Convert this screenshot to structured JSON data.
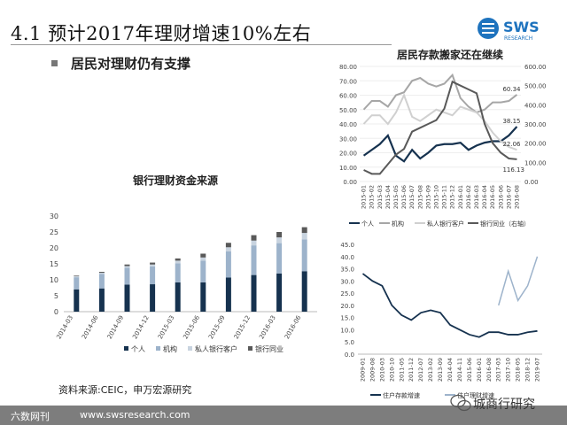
{
  "slide": {
    "title": "4.1 预计2017年理财增速10%左右",
    "bullet": "居民对理财仍有支撑",
    "source": "资料来源:CEIC，申万宏源研究",
    "footer_text": "六数网刊",
    "footer_url": "www.swsresearch.com",
    "watermark": "城商行研究",
    "logo_text": "SWS",
    "logo_sub": "RESEARCH"
  },
  "colors": {
    "navy": "#16324f",
    "lightblue": "#9db3cb",
    "paleblue": "#c8d3df",
    "darkgray": "#595959",
    "gray": "#a6a6a6",
    "lightgray": "#d0d0d0",
    "logo_blue": "#1e73be"
  },
  "chart_data": [
    {
      "type": "bar",
      "stacked": true,
      "title": "银行理财资金来源",
      "categories": [
        "2014-03",
        "2014-06",
        "2014-09",
        "2014-12",
        "2015-03",
        "2015-06",
        "2015-09",
        "2015-12",
        "2016-03",
        "2016-06"
      ],
      "ylim": [
        0,
        30
      ],
      "yticks": [
        "0",
        "5",
        "10",
        "15",
        "20",
        "25",
        "30"
      ],
      "series": [
        {
          "name": "个人",
          "values": [
            7,
            7.3,
            8.5,
            8.6,
            9.2,
            9.2,
            10.7,
            11.5,
            12,
            12.7
          ]
        },
        {
          "name": "机构",
          "values": [
            3.8,
            4.5,
            5.3,
            5.6,
            6,
            6.8,
            8.2,
            9.3,
            9.5,
            10
          ]
        },
        {
          "name": "私人银行客户",
          "values": [
            0.3,
            0.4,
            0.5,
            0.6,
            0.8,
            1,
            1.3,
            1.5,
            1.8,
            2
          ]
        },
        {
          "name": "银行同业",
          "values": [
            0.2,
            0.3,
            0.5,
            0.6,
            0.7,
            1.2,
            1.4,
            1.7,
            1.7,
            1.8
          ]
        }
      ],
      "legend_position": "bottom"
    },
    {
      "type": "line",
      "title": "居民存款搬家还在继续",
      "x": [
        "2015-01",
        "2015-02",
        "2015-03",
        "2015-04",
        "2015-05",
        "2015-06",
        "2015-07",
        "2015-08",
        "2015-09",
        "2015-10",
        "2015-11",
        "2015-12",
        "2016-01",
        "2016-02",
        "2016-03",
        "2016-04",
        "2016-05",
        "2016-06",
        "2016-07",
        "2016-08"
      ],
      "ylim_left": [
        0,
        80
      ],
      "yticks_left": [
        "0.00",
        "10.00",
        "20.00",
        "30.00",
        "40.00",
        "50.00",
        "60.00",
        "70.00",
        "80.00"
      ],
      "ylim_right": [
        0,
        600
      ],
      "yticks_right": [
        "0.00",
        "100.00",
        "200.00",
        "300.00",
        "400.00",
        "500.00",
        "600.00"
      ],
      "series": [
        {
          "name": "个人",
          "axis": "left",
          "values": [
            18,
            22,
            26,
            32,
            18,
            14,
            22,
            16,
            20,
            25,
            26,
            26,
            27,
            22,
            25,
            27,
            28,
            28,
            32,
            38.15
          ]
        },
        {
          "name": "机构",
          "axis": "left",
          "values": [
            50,
            56,
            56,
            52,
            60,
            62,
            70,
            72,
            68,
            66,
            68,
            74,
            58,
            52,
            48,
            50,
            55,
            55,
            56,
            60.34
          ]
        },
        {
          "name": "私人银行客户",
          "axis": "left",
          "values": [
            40,
            46,
            46,
            40,
            48,
            60,
            45,
            42,
            46,
            50,
            48,
            46,
            52,
            50,
            48,
            42,
            34,
            28,
            24,
            22.06
          ]
        },
        {
          "name": "银行同业（右轴）",
          "axis": "right",
          "values": [
            60,
            40,
            40,
            90,
            140,
            170,
            260,
            280,
            300,
            320,
            380,
            520,
            500,
            480,
            460,
            300,
            200,
            150,
            120,
            116.13
          ]
        }
      ],
      "annotations": [
        "60.34",
        "38.15",
        "22.06",
        "116.13"
      ],
      "legend_position": "bottom"
    },
    {
      "type": "line",
      "title": "",
      "x": [
        "2009-01",
        "2009-08",
        "2010-03",
        "2010-10",
        "2011-05",
        "2011-12",
        "2012-07",
        "2013-02",
        "2013-09",
        "2014-04",
        "2014-11",
        "2015-06",
        "2016-01",
        "2016-08",
        "2017-03",
        "2017-10",
        "2018-05",
        "2018-12",
        "2019-07"
      ],
      "ylim": [
        0,
        45
      ],
      "yticks": [
        "0.0",
        "5.0",
        "10.0",
        "15.0",
        "20.0",
        "25.0",
        "30.0",
        "35.0",
        "40.0",
        "45.0"
      ],
      "series": [
        {
          "name": "住户存款增速",
          "values": [
            33,
            30,
            28,
            20,
            16,
            14,
            17,
            18,
            17,
            12,
            10,
            8,
            7,
            9,
            9,
            8,
            8,
            9,
            9.5
          ]
        },
        {
          "name": "住户理财增速",
          "values": [
            null,
            null,
            null,
            null,
            null,
            null,
            null,
            null,
            null,
            null,
            null,
            null,
            null,
            null,
            20,
            34,
            22,
            28,
            40
          ]
        }
      ],
      "legend_position": "bottom"
    }
  ]
}
